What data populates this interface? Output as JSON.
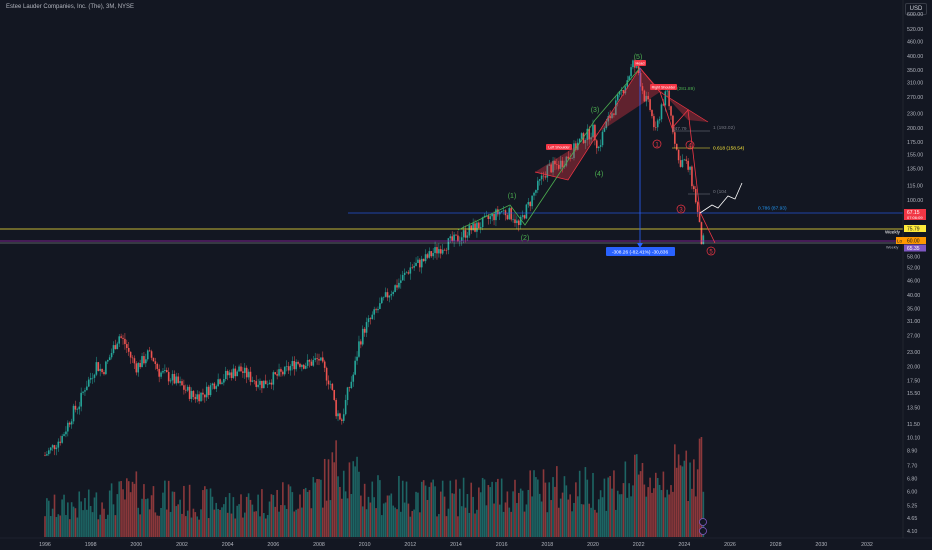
{
  "header": {
    "title": "Estee Lauder Companies, Inc. (The), 3M, NYSE",
    "currency": "USD"
  },
  "y_axis": {
    "ticks": [
      "600.00",
      "520.00",
      "460.00",
      "400.00",
      "350.00",
      "310.00",
      "270.00",
      "230.00",
      "200.00",
      "175.00",
      "155.00",
      "135.00",
      "115.00",
      "100.00",
      "88.00",
      "76.00",
      "67.00",
      "58.00",
      "52.00",
      "46.00",
      "40.00",
      "35.00",
      "31.00",
      "27.00",
      "23.00",
      "20.00",
      "17.50",
      "15.50",
      "13.50",
      "11.50",
      "10.10",
      "8.90",
      "7.70",
      "6.80",
      "6.00",
      "5.25",
      "4.65",
      "4.10"
    ],
    "price_tags": {
      "current": "67.15",
      "current_time": "07:06:09",
      "yellow_level": "75.79",
      "lo": "Lo",
      "lo_value": "60.00",
      "weekly_level": "65.35"
    }
  },
  "x_axis": {
    "ticks": [
      "1996",
      "1998",
      "2000",
      "2002",
      "2004",
      "2006",
      "2008",
      "2010",
      "2012",
      "2014",
      "2016",
      "2018",
      "2020",
      "2022",
      "2024",
      "2026",
      "2028",
      "2030",
      "2032"
    ]
  },
  "annotations": {
    "head": "Head",
    "left_shoulder": "Left Shoulder",
    "right_shoulder": "Right Shoulder",
    "right_shoulder_value": "(281.89)",
    "wave_1": "(1)",
    "wave_2": "(2)",
    "wave_3": "(3)",
    "wave_4": "(4)",
    "wave_5": "(5)",
    "circle_1": "1",
    "circle_3": "3",
    "circle_4": "4",
    "circle_5": "5",
    "fib_1": "1 (193.02)",
    "fib_0618": "0.618 (158.54)",
    "fib_0786": "0.786 (87.93)",
    "fib_0": "0 (104",
    "fib_top_left": "(47.79",
    "measure": "-308.26 (-82.41%) -30,836",
    "weekly_1": "Weekly",
    "weekly_2": "Weekly"
  },
  "chart_data": {
    "type": "candlestick",
    "title": "Estee Lauder Companies, Inc. (The), 3M, NYSE",
    "interval": "3M",
    "scale": "log",
    "ylim": [
      4.1,
      600
    ],
    "xlim": [
      1996,
      2032.5
    ],
    "series": [
      {
        "name": "price",
        "x": [
          1996.0,
          1996.25,
          1996.5,
          1996.75,
          1997.0,
          1997.25,
          1997.5,
          1997.75,
          1998.0,
          1998.25,
          1998.5,
          1998.75,
          1999.0,
          1999.25,
          1999.5,
          1999.75,
          2000.0,
          2000.25,
          2000.5,
          2000.75,
          2001.0,
          2001.5,
          2002.0,
          2002.5,
          2003.0,
          2003.5,
          2004.0,
          2004.5,
          2005.0,
          2005.5,
          2006.0,
          2006.5,
          2007.0,
          2007.5,
          2008.0,
          2008.5,
          2008.75,
          2009.0,
          2009.25,
          2009.5,
          2009.75,
          2010.0,
          2010.5,
          2011.0,
          2011.5,
          2012.0,
          2012.5,
          2013.0,
          2013.5,
          2014.0,
          2014.5,
          2015.0,
          2015.5,
          2016.0,
          2016.5,
          2016.75,
          2017.0,
          2017.5,
          2018.0,
          2018.5,
          2019.0,
          2019.5,
          2020.0,
          2020.25,
          2020.5,
          2021.0,
          2021.5,
          2021.75,
          2022.0,
          2022.25,
          2022.5,
          2022.75,
          2023.0,
          2023.25,
          2023.5,
          2023.75,
          2024.0,
          2024.25,
          2024.5,
          2024.75
        ],
        "y": [
          8.5,
          9.0,
          9.6,
          10.2,
          11.5,
          13.0,
          14.0,
          16.5,
          18.0,
          20.5,
          19.0,
          21.0,
          24.0,
          27.0,
          25.0,
          22.0,
          20.0,
          21.0,
          22.5,
          21.5,
          19.0,
          18.0,
          16.5,
          15.0,
          15.5,
          17.5,
          18.5,
          19.5,
          18.0,
          17.0,
          18.0,
          19.0,
          21.0,
          20.5,
          21.5,
          17.0,
          13.0,
          12.0,
          15.5,
          18.5,
          25.0,
          29.0,
          34.0,
          40.0,
          45.0,
          52.0,
          55.0,
          60.0,
          65.0,
          68.0,
          74.0,
          78.0,
          84.0,
          90.0,
          86.0,
          77.0,
          88.0,
          110.0,
          135.0,
          140.0,
          155.0,
          180.0,
          195.0,
          165.0,
          200.0,
          250.0,
          320.0,
          370.0,
          340.0,
          270.0,
          240.0,
          190.0,
          250.0,
          280.0,
          200.0,
          145.0,
          145.0,
          130.0,
          100.0,
          67.15
        ]
      },
      {
        "name": "volume",
        "x": [
          1996,
          1998,
          2000,
          2002,
          2004,
          2006,
          2008,
          2009,
          2010,
          2012,
          2014,
          2016,
          2018,
          2020,
          2022,
          2024,
          2024.5
        ],
        "y": [
          0.35,
          0.4,
          0.55,
          0.45,
          0.4,
          0.45,
          0.6,
          0.95,
          0.55,
          0.5,
          0.5,
          0.55,
          0.6,
          0.6,
          0.7,
          0.8,
          1.0
        ]
      }
    ],
    "levels": {
      "fib_1": 193.02,
      "fib_0618": 158.54,
      "fib_0786": 87.93,
      "yellow": 75.79,
      "weekly": 65.35,
      "lo": 60.0,
      "current": 67.15
    },
    "measure": {
      "change": -308.26,
      "percent": -82.41
    },
    "grid": false,
    "colors": {
      "up": "#26a69a",
      "down": "#ef5350",
      "background": "#131722",
      "fib_line": "#2962ff",
      "yellow_line": "#ffeb3b",
      "pattern": "#f23645"
    }
  }
}
